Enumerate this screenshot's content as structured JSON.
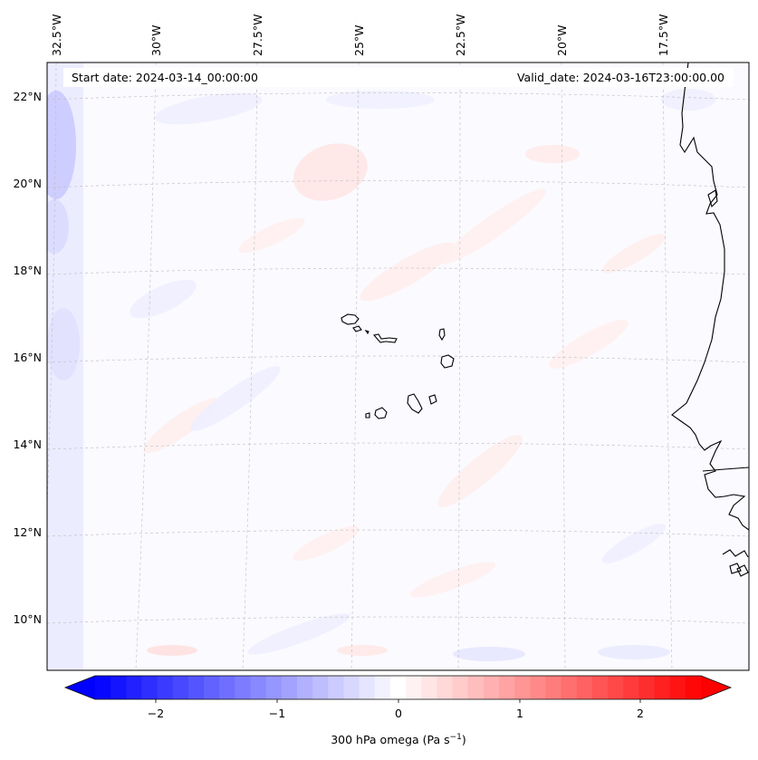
{
  "map": {
    "start_date": "Start date: 2024-03-14_00:00:00",
    "valid_date": "Valid_date: 2024-03-16T23:00:00.00",
    "lon_labels": [
      "32.5°W",
      "30°W",
      "27.5°W",
      "25°W",
      "22.5°W",
      "20°W",
      "17.5°W"
    ],
    "lat_labels": [
      "22°N",
      "20°N",
      "18°N",
      "16°N",
      "14°N",
      "12°N",
      "10°N"
    ],
    "gridlines": true,
    "coastline_color": "#000000"
  },
  "colorbar": {
    "label": "300 hPa omega (Pa s",
    "label_sup": "−1",
    "label_end": ")",
    "ticks": [
      "−2",
      "−1",
      "0",
      "1",
      "2"
    ],
    "range": [
      -2.6,
      2.6
    ],
    "colormap": "bwr",
    "low_color": "#0000ff",
    "mid_color": "#ffffff",
    "high_color": "#ff0000",
    "extend": "both"
  }
}
